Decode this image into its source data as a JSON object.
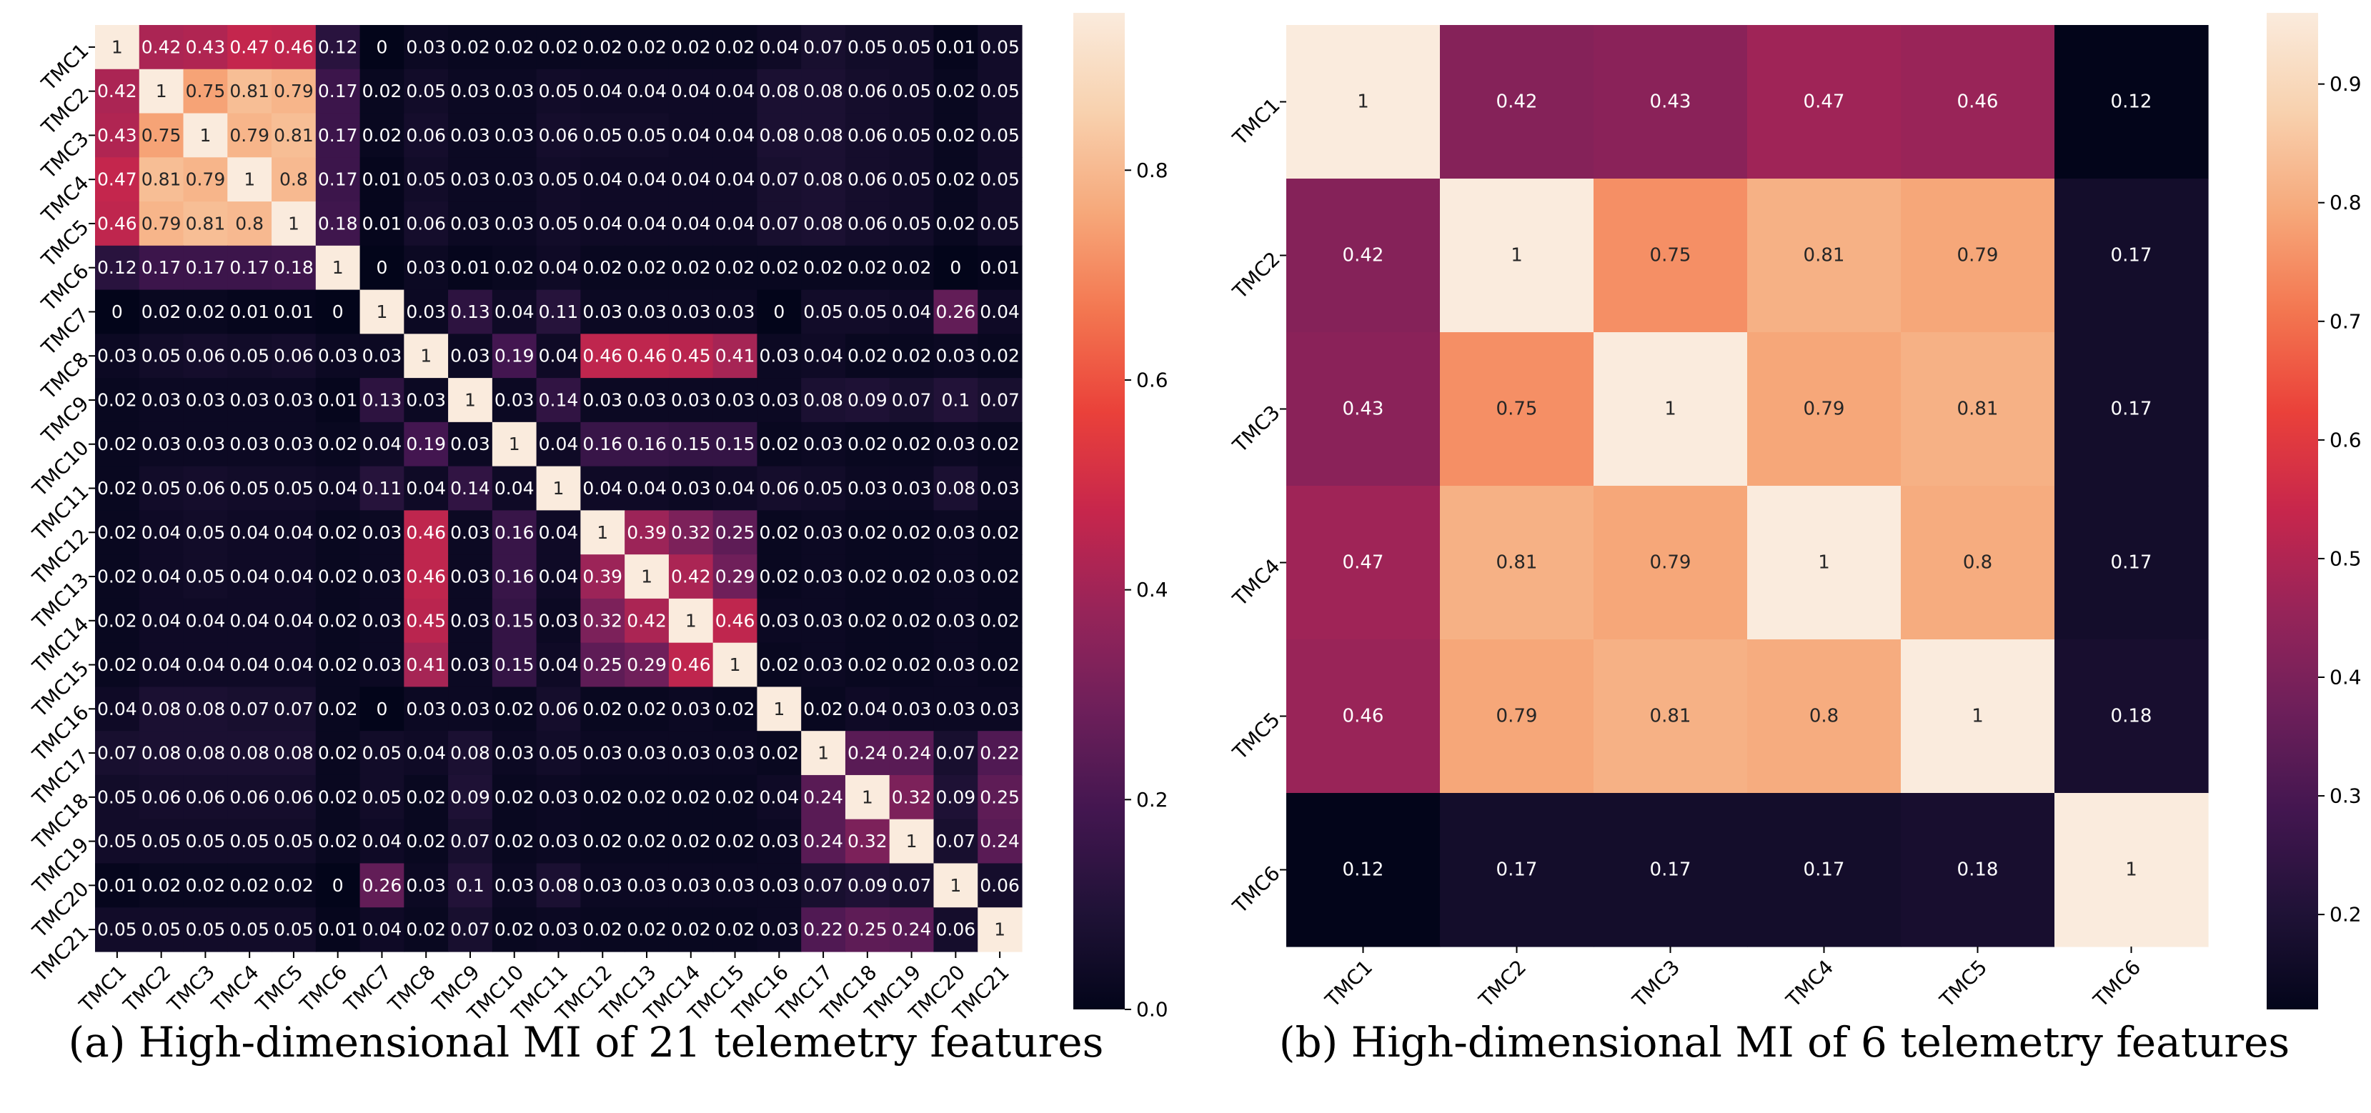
{
  "chart_data": [
    {
      "type": "heatmap",
      "title": "",
      "xlabel": "",
      "ylabel": "",
      "labels": [
        "TMC1",
        "TMC2",
        "TMC3",
        "TMC4",
        "TMC5",
        "TMC6",
        "TMC7",
        "TMC8",
        "TMC9",
        "TMC10",
        "TMC11",
        "TMC12",
        "TMC13",
        "TMC14",
        "TMC15",
        "TMC16",
        "TMC17",
        "TMC18",
        "TMC19",
        "TMC20",
        "TMC21"
      ],
      "matrix": [
        [
          1,
          0.42,
          0.43,
          0.47,
          0.46,
          0.12,
          0,
          0.03,
          0.02,
          0.02,
          0.02,
          0.02,
          0.02,
          0.02,
          0.02,
          0.04,
          0.07,
          0.05,
          0.05,
          0.01,
          0.05
        ],
        [
          0.42,
          1,
          0.75,
          0.81,
          0.79,
          0.17,
          0.02,
          0.05,
          0.03,
          0.03,
          0.05,
          0.04,
          0.04,
          0.04,
          0.04,
          0.08,
          0.08,
          0.06,
          0.05,
          0.02,
          0.05
        ],
        [
          0.43,
          0.75,
          1,
          0.79,
          0.81,
          0.17,
          0.02,
          0.06,
          0.03,
          0.03,
          0.06,
          0.05,
          0.05,
          0.04,
          0.04,
          0.08,
          0.08,
          0.06,
          0.05,
          0.02,
          0.05
        ],
        [
          0.47,
          0.81,
          0.79,
          1,
          0.8,
          0.17,
          0.01,
          0.05,
          0.03,
          0.03,
          0.05,
          0.04,
          0.04,
          0.04,
          0.04,
          0.07,
          0.08,
          0.06,
          0.05,
          0.02,
          0.05
        ],
        [
          0.46,
          0.79,
          0.81,
          0.8,
          1,
          0.18,
          0.01,
          0.06,
          0.03,
          0.03,
          0.05,
          0.04,
          0.04,
          0.04,
          0.04,
          0.07,
          0.08,
          0.06,
          0.05,
          0.02,
          0.05
        ],
        [
          0.12,
          0.17,
          0.17,
          0.17,
          0.18,
          1,
          0,
          0.03,
          0.01,
          0.02,
          0.04,
          0.02,
          0.02,
          0.02,
          0.02,
          0.02,
          0.02,
          0.02,
          0.02,
          0,
          0.01
        ],
        [
          0,
          0.02,
          0.02,
          0.01,
          0.01,
          0,
          1,
          0.03,
          0.13,
          0.04,
          0.11,
          0.03,
          0.03,
          0.03,
          0.03,
          0,
          0.05,
          0.05,
          0.04,
          0.26,
          0.04
        ],
        [
          0.03,
          0.05,
          0.06,
          0.05,
          0.06,
          0.03,
          0.03,
          1,
          0.03,
          0.19,
          0.04,
          0.46,
          0.46,
          0.45,
          0.41,
          0.03,
          0.04,
          0.02,
          0.02,
          0.03,
          0.02
        ],
        [
          0.02,
          0.03,
          0.03,
          0.03,
          0.03,
          0.01,
          0.13,
          0.03,
          1,
          0.03,
          0.14,
          0.03,
          0.03,
          0.03,
          0.03,
          0.03,
          0.08,
          0.09,
          0.07,
          0.1,
          0.07
        ],
        [
          0.02,
          0.03,
          0.03,
          0.03,
          0.03,
          0.02,
          0.04,
          0.19,
          0.03,
          1,
          0.04,
          0.16,
          0.16,
          0.15,
          0.15,
          0.02,
          0.03,
          0.02,
          0.02,
          0.03,
          0.02
        ],
        [
          0.02,
          0.05,
          0.06,
          0.05,
          0.05,
          0.04,
          0.11,
          0.04,
          0.14,
          0.04,
          1,
          0.04,
          0.04,
          0.03,
          0.04,
          0.06,
          0.05,
          0.03,
          0.03,
          0.08,
          0.03
        ],
        [
          0.02,
          0.04,
          0.05,
          0.04,
          0.04,
          0.02,
          0.03,
          0.46,
          0.03,
          0.16,
          0.04,
          1,
          0.39,
          0.32,
          0.25,
          0.02,
          0.03,
          0.02,
          0.02,
          0.03,
          0.02
        ],
        [
          0.02,
          0.04,
          0.05,
          0.04,
          0.04,
          0.02,
          0.03,
          0.46,
          0.03,
          0.16,
          0.04,
          0.39,
          1,
          0.42,
          0.29,
          0.02,
          0.03,
          0.02,
          0.02,
          0.03,
          0.02
        ],
        [
          0.02,
          0.04,
          0.04,
          0.04,
          0.04,
          0.02,
          0.03,
          0.45,
          0.03,
          0.15,
          0.03,
          0.32,
          0.42,
          1,
          0.46,
          0.03,
          0.03,
          0.02,
          0.02,
          0.03,
          0.02
        ],
        [
          0.02,
          0.04,
          0.04,
          0.04,
          0.04,
          0.02,
          0.03,
          0.41,
          0.03,
          0.15,
          0.04,
          0.25,
          0.29,
          0.46,
          1,
          0.02,
          0.03,
          0.02,
          0.02,
          0.03,
          0.02
        ],
        [
          0.04,
          0.08,
          0.08,
          0.07,
          0.07,
          0.02,
          0,
          0.03,
          0.03,
          0.02,
          0.06,
          0.02,
          0.02,
          0.03,
          0.02,
          1,
          0.02,
          0.04,
          0.03,
          0.03,
          0.03
        ],
        [
          0.07,
          0.08,
          0.08,
          0.08,
          0.08,
          0.02,
          0.05,
          0.04,
          0.08,
          0.03,
          0.05,
          0.03,
          0.03,
          0.03,
          0.03,
          0.02,
          1,
          0.24,
          0.24,
          0.07,
          0.22
        ],
        [
          0.05,
          0.06,
          0.06,
          0.06,
          0.06,
          0.02,
          0.05,
          0.02,
          0.09,
          0.02,
          0.03,
          0.02,
          0.02,
          0.02,
          0.02,
          0.04,
          0.24,
          1,
          0.32,
          0.09,
          0.25
        ],
        [
          0.05,
          0.05,
          0.05,
          0.05,
          0.05,
          0.02,
          0.04,
          0.02,
          0.07,
          0.02,
          0.03,
          0.02,
          0.02,
          0.02,
          0.02,
          0.03,
          0.24,
          0.32,
          1,
          0.07,
          0.24
        ],
        [
          0.01,
          0.02,
          0.02,
          0.02,
          0.02,
          0,
          0.26,
          0.03,
          0.1,
          0.03,
          0.08,
          0.03,
          0.03,
          0.03,
          0.03,
          0.03,
          0.07,
          0.09,
          0.07,
          1,
          0.06
        ],
        [
          0.05,
          0.05,
          0.05,
          0.05,
          0.05,
          0.01,
          0.04,
          0.02,
          0.07,
          0.02,
          0.03,
          0.02,
          0.02,
          0.02,
          0.02,
          0.03,
          0.22,
          0.25,
          0.24,
          0.06,
          1
        ]
      ],
      "colorbar": {
        "vmin": 0.0,
        "vmax": 0.95,
        "ticks": [
          0.0,
          0.2,
          0.4,
          0.6,
          0.8
        ],
        "tick_labels": [
          "0.0",
          "0.2",
          "0.4",
          "0.6",
          "0.8"
        ]
      },
      "caption": "(a) High-dimensional MI of 21 telemetry features"
    },
    {
      "type": "heatmap",
      "title": "",
      "xlabel": "",
      "ylabel": "",
      "labels": [
        "TMC1",
        "TMC2",
        "TMC3",
        "TMC4",
        "TMC5",
        "TMC6"
      ],
      "matrix": [
        [
          1,
          0.42,
          0.43,
          0.47,
          0.46,
          0.12
        ],
        [
          0.42,
          1,
          0.75,
          0.81,
          0.79,
          0.17
        ],
        [
          0.43,
          0.75,
          1,
          0.79,
          0.81,
          0.17
        ],
        [
          0.47,
          0.81,
          0.79,
          1,
          0.8,
          0.17
        ],
        [
          0.46,
          0.79,
          0.81,
          0.8,
          1,
          0.18
        ],
        [
          0.12,
          0.17,
          0.17,
          0.17,
          0.18,
          1
        ]
      ],
      "colorbar": {
        "vmin": 0.12,
        "vmax": 0.96,
        "ticks": [
          0.2,
          0.3,
          0.4,
          0.5,
          0.6,
          0.7,
          0.8,
          0.9
        ],
        "tick_labels": [
          "0.2",
          "0.3",
          "0.4",
          "0.5",
          "0.6",
          "0.7",
          "0.8",
          "0.9"
        ]
      },
      "caption": "(b) High-dimensional MI of 6 telemetry features"
    }
  ]
}
